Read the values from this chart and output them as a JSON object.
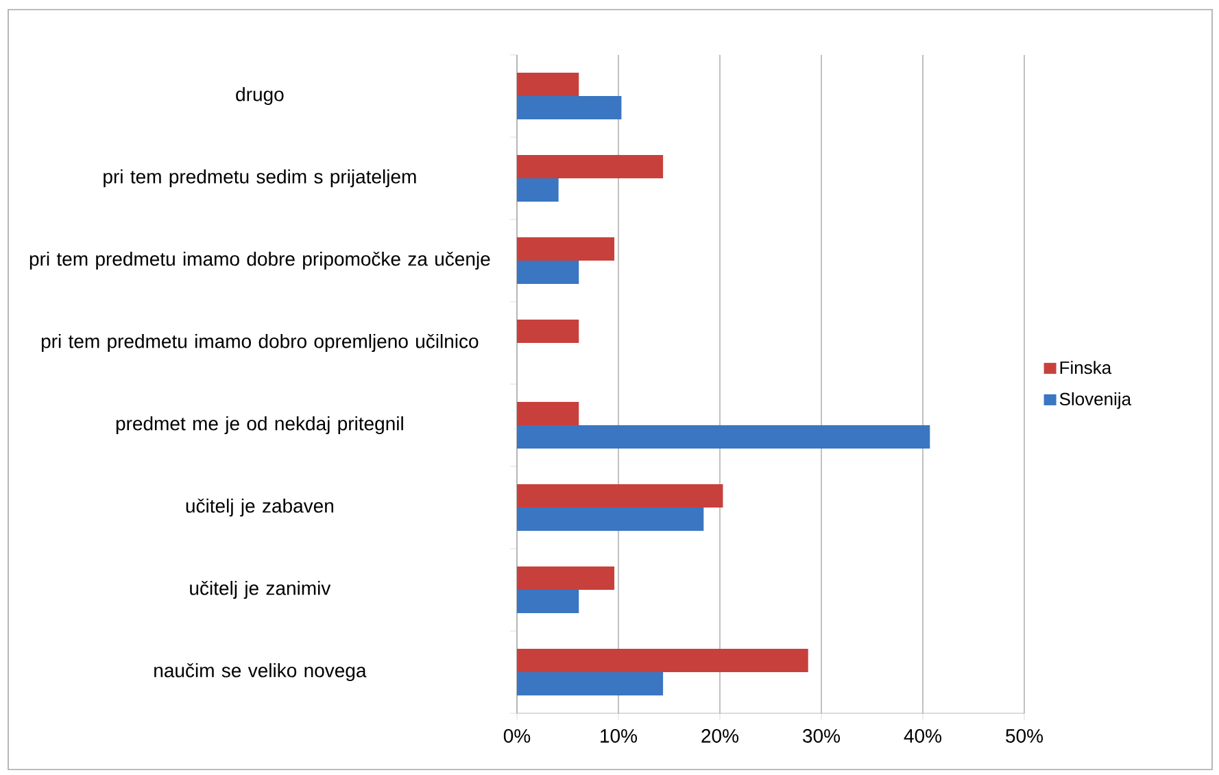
{
  "chart_data": {
    "type": "bar",
    "orientation": "horizontal",
    "categories": [
      "drugo",
      "pri tem predmetu sedim s prijateljem",
      "pri tem predmetu imamo dobre pripomočke za učenje",
      "pri tem predmetu imamo dobro opremljeno učilnico",
      "predmet me je od nekdaj pritegnil",
      "učitelj je zabaven",
      "učitelj je zanimiv",
      "naučim se veliko novega"
    ],
    "series": [
      {
        "name": "Finska",
        "color": "#c8403c",
        "values": [
          6.1,
          14.4,
          9.6,
          6.1,
          6.1,
          20.3,
          9.6,
          28.7
        ]
      },
      {
        "name": "Slovenija",
        "color": "#3a76c2",
        "values": [
          10.3,
          4.1,
          6.1,
          0,
          40.7,
          18.4,
          6.1,
          14.4
        ]
      }
    ],
    "xlim": [
      0,
      50
    ],
    "xticks": [
      {
        "value": 0,
        "label": "0%"
      },
      {
        "value": 10,
        "label": "10%"
      },
      {
        "value": 20,
        "label": "20%"
      },
      {
        "value": 30,
        "label": "30%"
      },
      {
        "value": 40,
        "label": "40%"
      },
      {
        "value": 50,
        "label": "50%"
      }
    ],
    "grid": "x",
    "legend": "right"
  }
}
